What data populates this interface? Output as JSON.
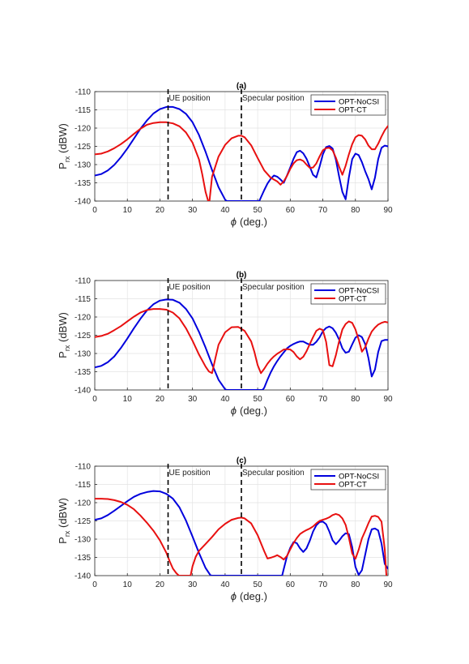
{
  "figure": {
    "y_min": -140,
    "y_max": -110,
    "x_min": 0,
    "x_max": 90,
    "x_ticks": [
      "0",
      "10",
      "20",
      "30",
      "40",
      "50",
      "60",
      "70",
      "80",
      "90"
    ],
    "y_ticks": [
      "-110",
      "-115",
      "-120",
      "-125",
      "-130",
      "-135",
      "-140"
    ],
    "xlabel_symbol": "ϕ",
    "xlabel_unit": "(deg.)",
    "ylabel_main": "P",
    "ylabel_sub": "rx",
    "ylabel_unit": "(dBW)",
    "grid": true,
    "legend_position": "top-right",
    "colors": {
      "opt_nocsi": "#0000dd",
      "opt_ct": "#e81010",
      "vline": "#000000",
      "grid": "#e3e3e3"
    }
  },
  "chart_data": [
    {
      "type": "line",
      "title": "(a)",
      "xlabel": "ϕ (deg.)",
      "ylabel": "P_rx (dBW)",
      "xlim": [
        0,
        90
      ],
      "ylim": [
        -140,
        -110
      ],
      "annotations": [
        {
          "x": 22.5,
          "text": "UE position"
        },
        {
          "x": 45,
          "text": "Specular position"
        }
      ],
      "series": [
        {
          "name": "OPT-NoCSI",
          "color": "#0000dd",
          "x": [
            0,
            2,
            4,
            6,
            8,
            10,
            12,
            14,
            16,
            18,
            20,
            22,
            24,
            26,
            28,
            30,
            32,
            34,
            36,
            38,
            40,
            40.5,
            50.5,
            51,
            52,
            53,
            54,
            55,
            56,
            57,
            58,
            59,
            60,
            61,
            62,
            63,
            64,
            65,
            66,
            67,
            68,
            69,
            70,
            71,
            72,
            73,
            74,
            75,
            76,
            77,
            78,
            79,
            80,
            81,
            82,
            83,
            84,
            85,
            86,
            87,
            88,
            89,
            90
          ],
          "y": [
            -133,
            -132.6,
            -131.6,
            -130.1,
            -128,
            -125.6,
            -122.9,
            -120.2,
            -117.9,
            -116,
            -114.8,
            -114.2,
            -114.2,
            -114.8,
            -116.1,
            -118.4,
            -121.9,
            -126.5,
            -131.5,
            -136.2,
            -139.6,
            -140,
            -140,
            -139,
            -137,
            -135.2,
            -133.9,
            -133,
            -133.3,
            -134.1,
            -135,
            -133,
            -130.8,
            -128.4,
            -126.6,
            -126.2,
            -126.9,
            -128.4,
            -130.6,
            -132.8,
            -133.5,
            -130.6,
            -127.2,
            -125.2,
            -124.9,
            -125.6,
            -128.6,
            -133.3,
            -137.5,
            -139.5,
            -133.5,
            -128.5,
            -127,
            -127.4,
            -129.3,
            -131.8,
            -134,
            -136.8,
            -133.6,
            -128.5,
            -125.4,
            -124.8,
            -125
          ]
        },
        {
          "name": "OPT-CT",
          "color": "#e81010",
          "x": [
            0,
            2,
            4,
            6,
            8,
            10,
            12,
            14,
            16,
            18,
            20,
            22,
            24,
            26,
            28,
            30,
            32,
            33,
            34,
            34.8,
            35.2,
            36,
            38,
            40,
            42,
            44,
            45,
            46,
            48,
            50,
            52,
            54,
            56,
            57,
            58,
            59,
            60,
            61,
            62,
            63,
            64,
            65,
            66,
            67,
            68,
            69,
            70,
            71,
            72,
            73,
            74,
            75,
            76,
            77,
            78,
            79,
            80,
            81,
            82,
            83,
            84,
            85,
            86,
            87,
            88,
            89,
            90
          ],
          "y": [
            -127.2,
            -127,
            -126.4,
            -125.5,
            -124.4,
            -123.1,
            -121.6,
            -120.2,
            -119.1,
            -118.6,
            -118.4,
            -118.4,
            -118.7,
            -119.5,
            -121.2,
            -124,
            -128.6,
            -132.7,
            -137.5,
            -140,
            -140,
            -133.3,
            -127.8,
            -124.6,
            -122.8,
            -122.1,
            -122.1,
            -122.5,
            -124.7,
            -128.2,
            -131.6,
            -133.6,
            -134.6,
            -135.5,
            -134.6,
            -133.1,
            -131.2,
            -129.7,
            -128.8,
            -128.6,
            -129,
            -130,
            -130.9,
            -130.8,
            -129.7,
            -127.8,
            -126.1,
            -125.5,
            -125.4,
            -126.1,
            -128.1,
            -130.6,
            -132.8,
            -130.3,
            -127.2,
            -124.4,
            -122.5,
            -121.9,
            -122.1,
            -123.1,
            -124.8,
            -125.8,
            -125.8,
            -124.3,
            -122.3,
            -120.6,
            -119.4
          ]
        }
      ]
    },
    {
      "type": "line",
      "title": "(b)",
      "xlabel": "ϕ (deg.)",
      "ylabel": "P_rx (dBW)",
      "xlim": [
        0,
        90
      ],
      "ylim": [
        -140,
        -110
      ],
      "annotations": [
        {
          "x": 22.5,
          "text": "UE position"
        },
        {
          "x": 45,
          "text": "Specular position"
        }
      ],
      "series": [
        {
          "name": "OPT-NoCSI",
          "color": "#0000dd",
          "x": [
            0,
            2,
            4,
            6,
            8,
            10,
            12,
            14,
            16,
            18,
            20,
            22,
            24,
            26,
            28,
            30,
            32,
            34,
            36,
            38,
            40,
            40.5,
            51.5,
            52,
            53,
            54,
            55,
            56,
            57,
            58,
            59,
            60,
            61,
            62,
            63,
            64,
            65,
            66,
            67,
            68,
            69,
            70,
            71,
            72,
            73,
            74,
            75,
            76,
            77,
            78,
            79,
            80,
            81,
            82,
            83,
            84,
            85,
            86,
            87,
            88,
            89,
            90
          ],
          "y": [
            -133.8,
            -133.4,
            -132.4,
            -130.8,
            -128.5,
            -125.9,
            -123.1,
            -120.5,
            -118.2,
            -116.5,
            -115.5,
            -115.2,
            -115.3,
            -116.1,
            -117.8,
            -120.4,
            -124.1,
            -128.4,
            -133,
            -137.2,
            -139.8,
            -140,
            -140,
            -139.4,
            -137.2,
            -135.2,
            -133.5,
            -132.1,
            -130.8,
            -129.7,
            -128.6,
            -127.9,
            -127.4,
            -127,
            -126.7,
            -126.7,
            -127.2,
            -127.6,
            -127.6,
            -126.8,
            -125.6,
            -123.9,
            -123,
            -122.6,
            -123.1,
            -124.3,
            -126.2,
            -128.6,
            -129.8,
            -129.5,
            -127.5,
            -125.7,
            -125,
            -125.5,
            -127.4,
            -131.3,
            -136.3,
            -134.4,
            -129.6,
            -126.6,
            -126.3,
            -126.3
          ]
        },
        {
          "name": "OPT-CT",
          "color": "#e81010",
          "x": [
            0,
            2,
            4,
            6,
            8,
            10,
            12,
            14,
            16,
            18,
            20,
            22,
            24,
            26,
            28,
            30,
            32,
            34,
            35,
            36,
            37,
            38,
            40,
            42,
            44,
            46,
            48,
            49,
            50,
            51,
            52,
            53,
            54,
            55,
            56,
            57,
            58,
            59,
            60,
            61,
            62,
            63,
            64,
            65,
            66,
            67,
            68,
            69,
            70,
            71,
            72,
            73,
            74,
            75,
            76,
            77,
            78,
            79,
            80,
            81,
            82,
            83,
            84,
            85,
            86,
            87,
            88,
            89,
            90
          ],
          "y": [
            -125.5,
            -125.2,
            -124.6,
            -123.6,
            -122.5,
            -121.2,
            -119.9,
            -118.8,
            -118.1,
            -117.8,
            -117.8,
            -118,
            -118.8,
            -120.4,
            -123.1,
            -126.5,
            -130.3,
            -133.6,
            -134.9,
            -135.4,
            -131.4,
            -127.6,
            -124.2,
            -122.8,
            -122.7,
            -123.8,
            -126.7,
            -129.6,
            -133.2,
            -135.4,
            -134.2,
            -132.8,
            -131.7,
            -130.8,
            -130.1,
            -129.5,
            -128.9,
            -128.8,
            -128.9,
            -129.6,
            -130.8,
            -131.6,
            -130.9,
            -129.4,
            -127.4,
            -125.5,
            -123.8,
            -123.2,
            -123.6,
            -126.8,
            -133.2,
            -133.5,
            -130.5,
            -126.6,
            -123.4,
            -121.9,
            -121.2,
            -121.6,
            -123.4,
            -126.2,
            -129.5,
            -128.3,
            -125.9,
            -124,
            -122.9,
            -122.1,
            -121.6,
            -121.3,
            -121.5
          ]
        }
      ]
    },
    {
      "type": "line",
      "title": "(c)",
      "xlabel": "ϕ (deg.)",
      "ylabel": "P_rx (dBW)",
      "xlim": [
        0,
        90
      ],
      "ylim": [
        -140,
        -110
      ],
      "annotations": [
        {
          "x": 22.5,
          "text": "UE position"
        },
        {
          "x": 45,
          "text": "Specular position"
        }
      ],
      "series": [
        {
          "name": "OPT-NoCSI",
          "color": "#0000dd",
          "x": [
            0,
            2,
            4,
            6,
            8,
            10,
            12,
            14,
            16,
            18,
            20,
            22,
            24,
            26,
            28,
            30,
            32,
            34,
            35.5,
            36,
            57.5,
            58,
            59,
            60,
            61,
            62,
            63,
            64,
            65,
            66,
            67,
            68,
            69,
            70,
            71,
            72,
            73,
            74,
            75,
            76,
            77,
            78,
            79,
            80,
            81,
            82,
            83,
            84,
            85,
            86,
            87,
            88,
            89,
            90
          ],
          "y": [
            -124.7,
            -124.3,
            -123.4,
            -122.2,
            -120.9,
            -119.6,
            -118.4,
            -117.6,
            -117.1,
            -116.8,
            -116.9,
            -117.6,
            -118.9,
            -121.3,
            -124.9,
            -129.3,
            -133.8,
            -137.9,
            -139.9,
            -140,
            -140,
            -138.2,
            -134.7,
            -132.4,
            -130.8,
            -131.1,
            -132.5,
            -133.5,
            -132.5,
            -130.4,
            -127.9,
            -126.2,
            -125.3,
            -125.2,
            -125.9,
            -127.9,
            -130.3,
            -131.4,
            -130.4,
            -129.2,
            -128.4,
            -128.6,
            -132.2,
            -137.6,
            -139.8,
            -138.5,
            -134.3,
            -130,
            -127.3,
            -127.1,
            -127.6,
            -131.2,
            -136.8,
            -138.1
          ]
        },
        {
          "name": "OPT-CT",
          "color": "#e81010",
          "x": [
            0,
            2,
            4,
            6,
            8,
            10,
            12,
            14,
            16,
            18,
            20,
            22,
            23,
            24,
            25,
            25.8,
            29.4,
            30,
            31,
            32,
            34,
            36,
            38,
            40,
            42,
            44,
            45,
            46,
            48,
            50,
            52,
            53,
            54,
            55,
            56,
            57,
            58,
            59,
            60,
            61,
            62,
            63,
            64,
            65,
            66,
            67,
            68,
            69,
            70,
            71,
            72,
            73,
            74,
            75,
            76,
            77,
            78,
            79,
            80,
            81,
            82,
            83,
            84,
            85,
            86,
            87,
            88,
            89,
            89.5
          ],
          "y": [
            -118.9,
            -118.9,
            -119,
            -119.3,
            -119.8,
            -120.6,
            -121.8,
            -123.5,
            -125.5,
            -127.7,
            -130.3,
            -133.8,
            -136.1,
            -138.1,
            -139.3,
            -140,
            -140,
            -137.4,
            -134.8,
            -133.2,
            -131.3,
            -129.4,
            -127.3,
            -125.8,
            -124.7,
            -124.2,
            -124.1,
            -124.3,
            -125.7,
            -128.9,
            -133.3,
            -135.3,
            -135.1,
            -134.8,
            -134.4,
            -134.9,
            -135.6,
            -134.6,
            -132.8,
            -131.1,
            -129.7,
            -128.6,
            -128,
            -127.5,
            -127.1,
            -126.5,
            -125.7,
            -125,
            -124.7,
            -124.4,
            -124,
            -123.4,
            -123.1,
            -123.4,
            -124.3,
            -126.1,
            -129.6,
            -133.9,
            -135.4,
            -132.9,
            -129.8,
            -127.8,
            -125.6,
            -123.8,
            -123.6,
            -123.9,
            -125.2,
            -132.8,
            -139.9
          ]
        }
      ]
    }
  ]
}
